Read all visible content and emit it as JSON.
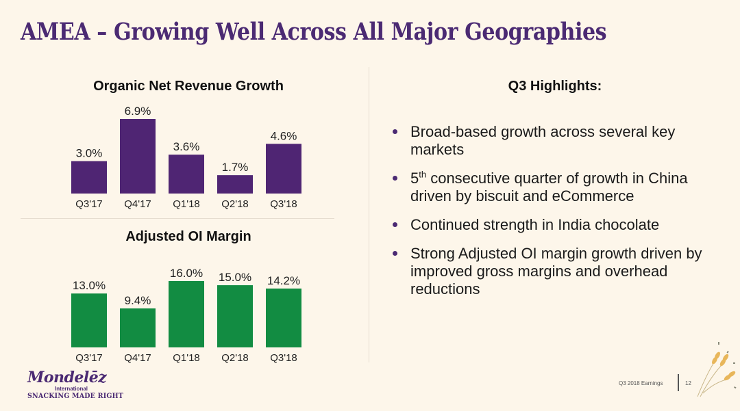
{
  "slide": {
    "title": "AMEA – Growing Well Across All Major Geographies"
  },
  "chart_data": [
    {
      "type": "bar",
      "title": "Organic Net Revenue Growth",
      "categories": [
        "Q3'17",
        "Q4'17",
        "Q1'18",
        "Q2'18",
        "Q3'18"
      ],
      "values": [
        3.0,
        6.9,
        3.6,
        1.7,
        4.6
      ],
      "data_labels": [
        "3.0%",
        "6.9%",
        "3.6%",
        "1.7%",
        "4.6%"
      ],
      "unit": "%",
      "color": "#4f2573",
      "xlabel": "",
      "ylabel": "",
      "ylim": [
        0,
        6.9
      ],
      "grid": false,
      "legend": "none"
    },
    {
      "type": "bar",
      "title": "Adjusted OI Margin",
      "categories": [
        "Q3'17",
        "Q4'17",
        "Q1'18",
        "Q2'18",
        "Q3'18"
      ],
      "values": [
        13.0,
        9.4,
        16.0,
        15.0,
        14.2
      ],
      "data_labels": [
        "13.0%",
        "9.4%",
        "16.0%",
        "15.0%",
        "14.2%"
      ],
      "unit": "%",
      "color": "#128c42",
      "xlabel": "",
      "ylabel": "",
      "ylim": [
        0,
        16.0
      ],
      "grid": false,
      "legend": "none"
    }
  ],
  "highlights": {
    "title": "Q3 Highlights:",
    "bullets": [
      {
        "pre": "Broad-based growth across several key markets",
        "sup": "",
        "post": ""
      },
      {
        "pre": "5",
        "sup": "th",
        "post": " consecutive quarter of growth in China driven by biscuit and eCommerce"
      },
      {
        "pre": "Continued strength in India chocolate",
        "sup": "",
        "post": ""
      },
      {
        "pre": "Strong Adjusted OI margin growth driven by improved gross margins and overhead reductions",
        "sup": "",
        "post": ""
      }
    ]
  },
  "footer": {
    "logo_name": "Mondelēz",
    "logo_sub": "International",
    "logo_tagline": "SNACKING MADE RIGHT",
    "doc_label": "Q3 2018 Earnings",
    "page_number": "12"
  },
  "colors": {
    "brand_purple": "#4b2a73",
    "bar_purple": "#4f2573",
    "bar_green": "#128c42",
    "background": "#fdf6ea"
  }
}
